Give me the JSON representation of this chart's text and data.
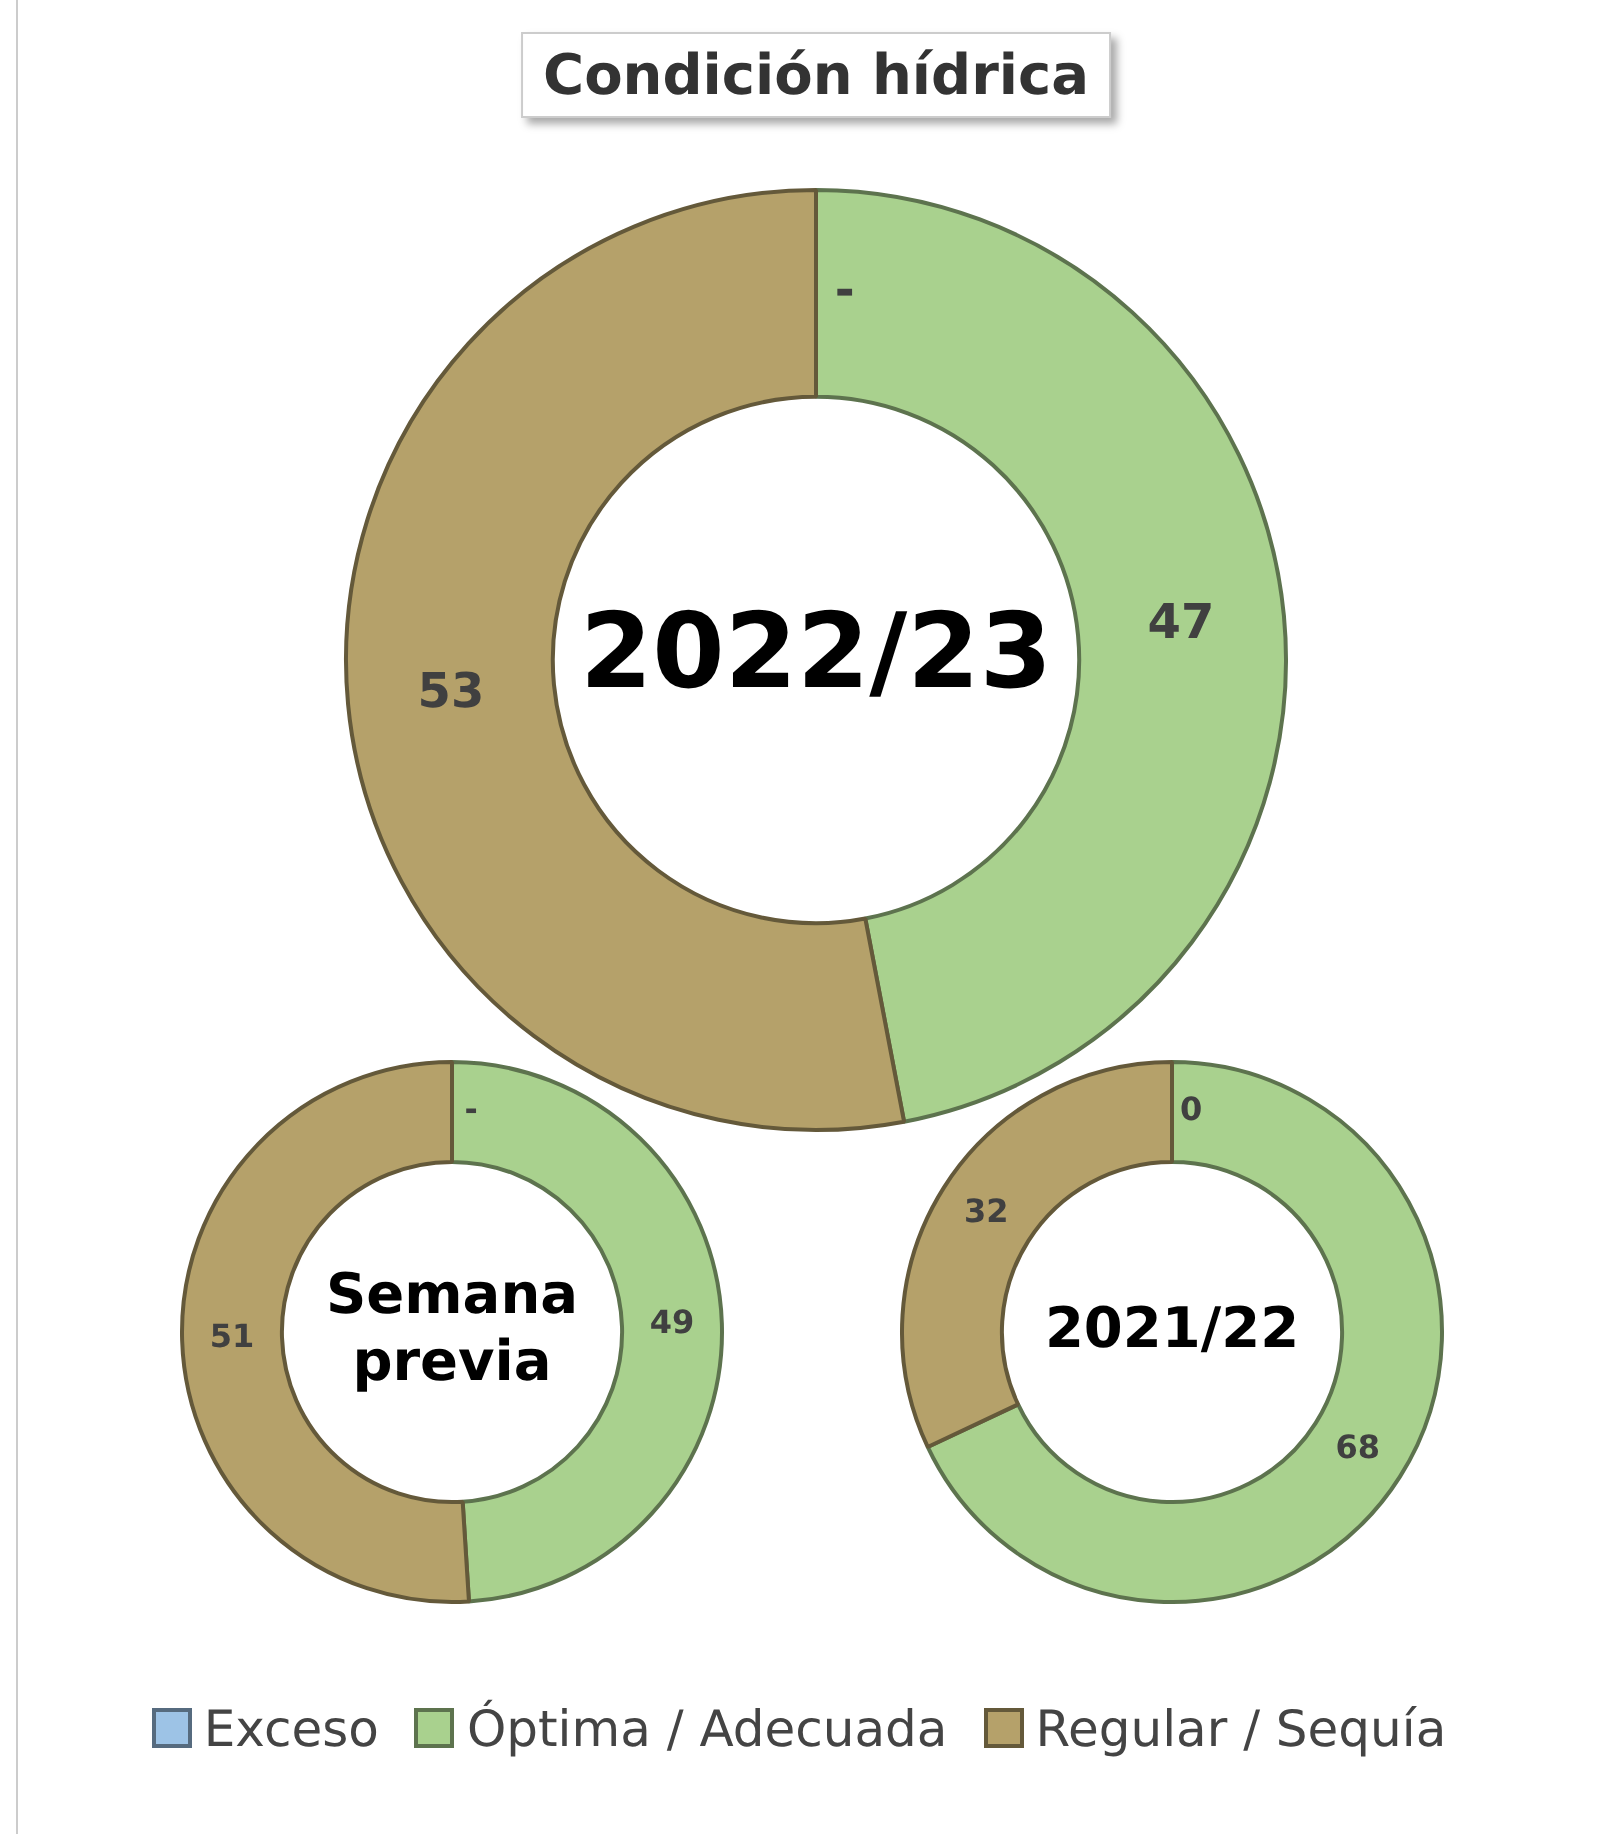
{
  "chart_data": [
    {
      "type": "donut",
      "title": "Condición hídrica",
      "annotations": [
        "2022/23"
      ],
      "categories": [
        "Exceso",
        "Óptima / Adecuada",
        "Regular / Sequía"
      ],
      "values": [
        0,
        47,
        53
      ],
      "value_labels": [
        "-",
        "47",
        "53"
      ],
      "colors": [
        "#9dc3e6",
        "#a9d18e",
        "#b5a16a"
      ],
      "legend": "bottom"
    },
    {
      "type": "donut",
      "annotations": [
        "Semana previa"
      ],
      "categories": [
        null,
        null,
        null
      ],
      "values": [
        0,
        49,
        51
      ],
      "value_labels": [
        "-",
        "49",
        "51"
      ],
      "colors": [
        "#9dc3e6",
        "#a9d18e",
        "#b5a16a"
      ]
    },
    {
      "type": "donut",
      "annotations": [
        "2021/22"
      ],
      "categories": [
        null,
        null,
        null
      ],
      "values": [
        0,
        68,
        32
      ],
      "value_labels": [
        "0",
        "68",
        "32"
      ],
      "colors": [
        "#9dc3e6",
        "#a9d18e",
        "#b5a16a"
      ]
    }
  ]
}
